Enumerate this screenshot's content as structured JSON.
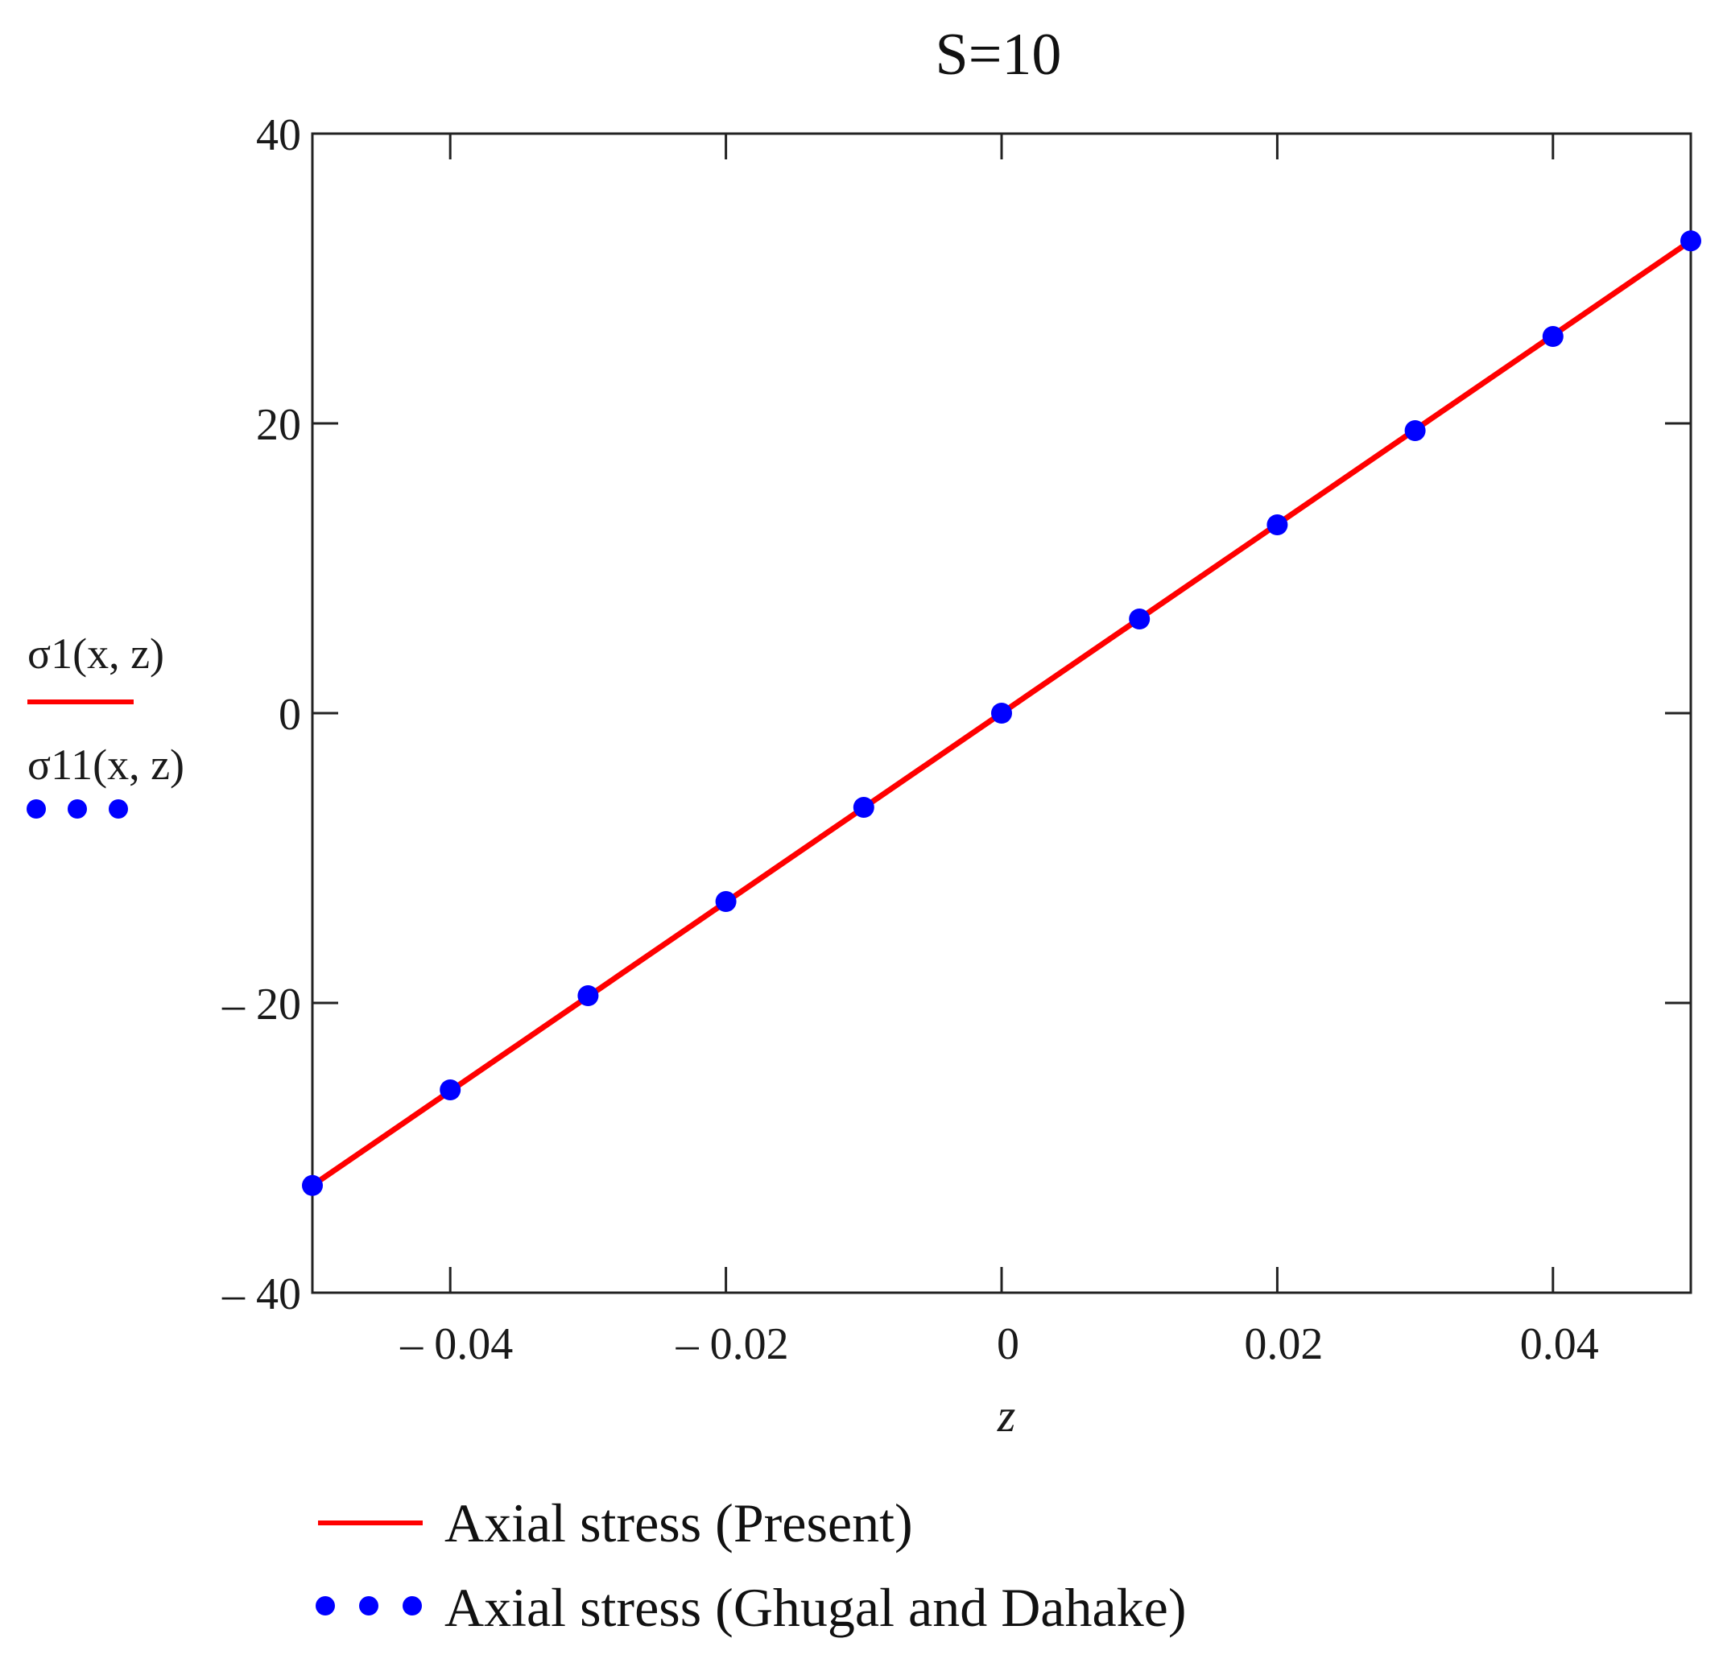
{
  "chart_data": {
    "type": "line",
    "title": "S=10",
    "xlabel": "z",
    "ylabels": [
      "σ1(x, z)",
      "σ11(x, z)"
    ],
    "xlim": [
      -0.05,
      0.05
    ],
    "ylim": [
      -40,
      40
    ],
    "x_ticks": [
      -0.04,
      -0.02,
      0,
      0.02,
      0.04
    ],
    "x_tick_labels": [
      "– 0.04",
      "– 0.02",
      "0",
      "0.02",
      "0.04"
    ],
    "y_ticks": [
      -40,
      -20,
      0,
      20,
      40
    ],
    "y_tick_labels": [
      "– 40",
      "– 20",
      "0",
      "20",
      "40"
    ],
    "grid": false,
    "legend_placement": "bottom",
    "series": [
      {
        "name": "Axial stress (Present)",
        "style": "line",
        "color": "#ff0000",
        "x": [
          -0.05,
          0.05
        ],
        "y": [
          -32.6,
          32.6
        ]
      },
      {
        "name": "Axial stress (Ghugal and Dahake)",
        "style": "dots",
        "color": "#0000ff",
        "x": [
          -0.05,
          -0.04,
          -0.03,
          -0.02,
          -0.01,
          0,
          0.01,
          0.02,
          0.03,
          0.04,
          0.05
        ],
        "y": [
          -32.6,
          -26.0,
          -19.5,
          -13.0,
          -6.5,
          0,
          6.5,
          13.0,
          19.5,
          26.0,
          32.6
        ]
      }
    ]
  }
}
